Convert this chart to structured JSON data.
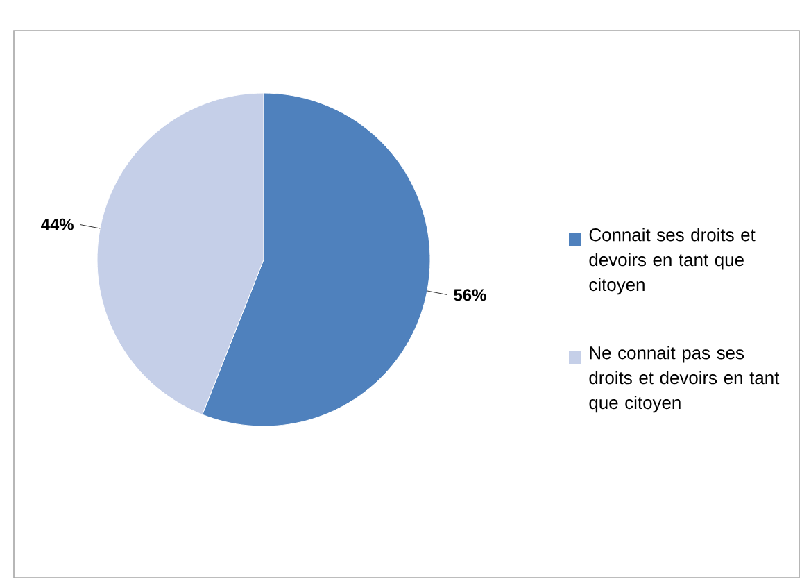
{
  "chart_data": {
    "type": "pie",
    "categories": [
      "Connait ses droits et devoirs en tant que citoyen",
      "Ne connait pas ses droits et devoirs en tant que citoyen"
    ],
    "values": [
      56,
      44
    ],
    "value_labels": [
      "56%",
      "44%"
    ],
    "colors": [
      "#4f81bd",
      "#c5cfe8"
    ],
    "legend": "right"
  }
}
